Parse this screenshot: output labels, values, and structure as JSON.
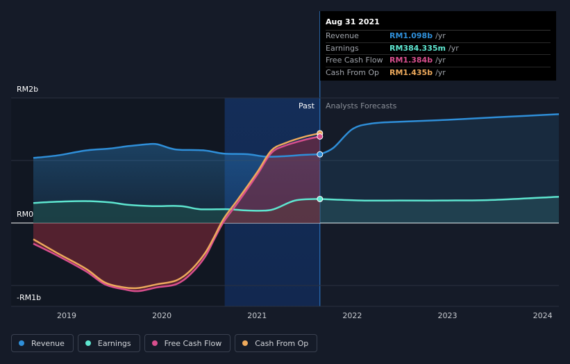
{
  "tooltip": {
    "date": "Aug 31 2021",
    "rows": [
      {
        "label": "Revenue",
        "value": "RM1.098b",
        "unit": "/yr",
        "color": "#2f8fd9"
      },
      {
        "label": "Earnings",
        "value": "RM384.335m",
        "unit": "/yr",
        "color": "#5ee6d0"
      },
      {
        "label": "Free Cash Flow",
        "value": "RM1.384b",
        "unit": "/yr",
        "color": "#d94f8e"
      },
      {
        "label": "Cash From Op",
        "value": "RM1.435b",
        "unit": "/yr",
        "color": "#eeaa5c"
      }
    ]
  },
  "legend": [
    {
      "label": "Revenue",
      "color": "#2f8fd9"
    },
    {
      "label": "Earnings",
      "color": "#5ee6d0"
    },
    {
      "label": "Free Cash Flow",
      "color": "#d94f8e"
    },
    {
      "label": "Cash From Op",
      "color": "#eeaa5c"
    }
  ],
  "chart_data": {
    "type": "line",
    "y_tick_labels": [
      "RM2b",
      "RM0",
      "-RM1b"
    ],
    "y_ticks": [
      2,
      0,
      -1
    ],
    "ylim": [
      -1.2,
      2.0
    ],
    "xlim": [
      2018.65,
      2024.17
    ],
    "x_tick_labels": [
      "2019",
      "2020",
      "2021",
      "2022",
      "2023",
      "2024"
    ],
    "x_ticks": [
      2019,
      2020,
      2021,
      2022,
      2023,
      2024
    ],
    "past_label": "Past",
    "forecast_label": "Analysts Forecasts",
    "past_end": 2021.66,
    "highlight_start": 2020.66,
    "series": [
      {
        "name": "Revenue",
        "color": "#2f8fd9",
        "x": [
          2018.65,
          2018.9,
          2019.2,
          2019.45,
          2019.65,
          2019.85,
          2019.95,
          2020.1,
          2020.2,
          2020.45,
          2020.65,
          2020.9,
          2021.1,
          2021.3,
          2021.5,
          2021.66
        ],
        "y": [
          1.04,
          1.08,
          1.16,
          1.19,
          1.23,
          1.26,
          1.26,
          1.19,
          1.17,
          1.16,
          1.11,
          1.1,
          1.06,
          1.07,
          1.09,
          1.098
        ]
      },
      {
        "name": "Revenue forecast",
        "color": "#2f8fd9",
        "x": [
          2021.66,
          2021.8,
          2022.0,
          2022.2,
          2022.5,
          2023.0,
          2023.5,
          2024.17
        ],
        "y": [
          1.098,
          1.2,
          1.5,
          1.59,
          1.62,
          1.65,
          1.69,
          1.74
        ]
      },
      {
        "name": "Earnings",
        "color": "#5ee6d0",
        "x": [
          2018.65,
          2018.9,
          2019.2,
          2019.45,
          2019.65,
          2019.9,
          2020.2,
          2020.4,
          2020.7,
          2020.9,
          2021.15,
          2021.4,
          2021.66
        ],
        "y": [
          0.32,
          0.34,
          0.35,
          0.33,
          0.29,
          0.27,
          0.27,
          0.22,
          0.22,
          0.2,
          0.21,
          0.36,
          0.384
        ]
      },
      {
        "name": "Earnings forecast",
        "color": "#5ee6d0",
        "x": [
          2021.66,
          2022.1,
          2022.5,
          2023.0,
          2023.5,
          2024.17
        ],
        "y": [
          0.384,
          0.36,
          0.36,
          0.36,
          0.37,
          0.42
        ]
      },
      {
        "name": "Free Cash Flow",
        "color": "#d94f8e",
        "x": [
          2018.65,
          2018.9,
          2019.2,
          2019.4,
          2019.6,
          2019.75,
          2019.95,
          2020.15,
          2020.3,
          2020.45,
          2020.55,
          2020.65,
          2020.8,
          2021.0,
          2021.15,
          2021.3,
          2021.5,
          2021.66
        ],
        "y": [
          -0.33,
          -0.52,
          -0.77,
          -0.98,
          -1.06,
          -1.09,
          -1.03,
          -0.98,
          -0.82,
          -0.55,
          -0.26,
          0.02,
          0.33,
          0.77,
          1.12,
          1.24,
          1.33,
          1.384
        ]
      },
      {
        "name": "Cash From Op",
        "color": "#eeaa5c",
        "x": [
          2018.65,
          2018.9,
          2019.2,
          2019.4,
          2019.6,
          2019.75,
          2019.95,
          2020.15,
          2020.3,
          2020.45,
          2020.55,
          2020.65,
          2020.8,
          2021.0,
          2021.15,
          2021.3,
          2021.5,
          2021.66
        ],
        "y": [
          -0.26,
          -0.48,
          -0.73,
          -0.95,
          -1.03,
          -1.04,
          -0.98,
          -0.92,
          -0.76,
          -0.49,
          -0.22,
          0.07,
          0.38,
          0.81,
          1.16,
          1.28,
          1.38,
          1.435
        ]
      }
    ]
  }
}
